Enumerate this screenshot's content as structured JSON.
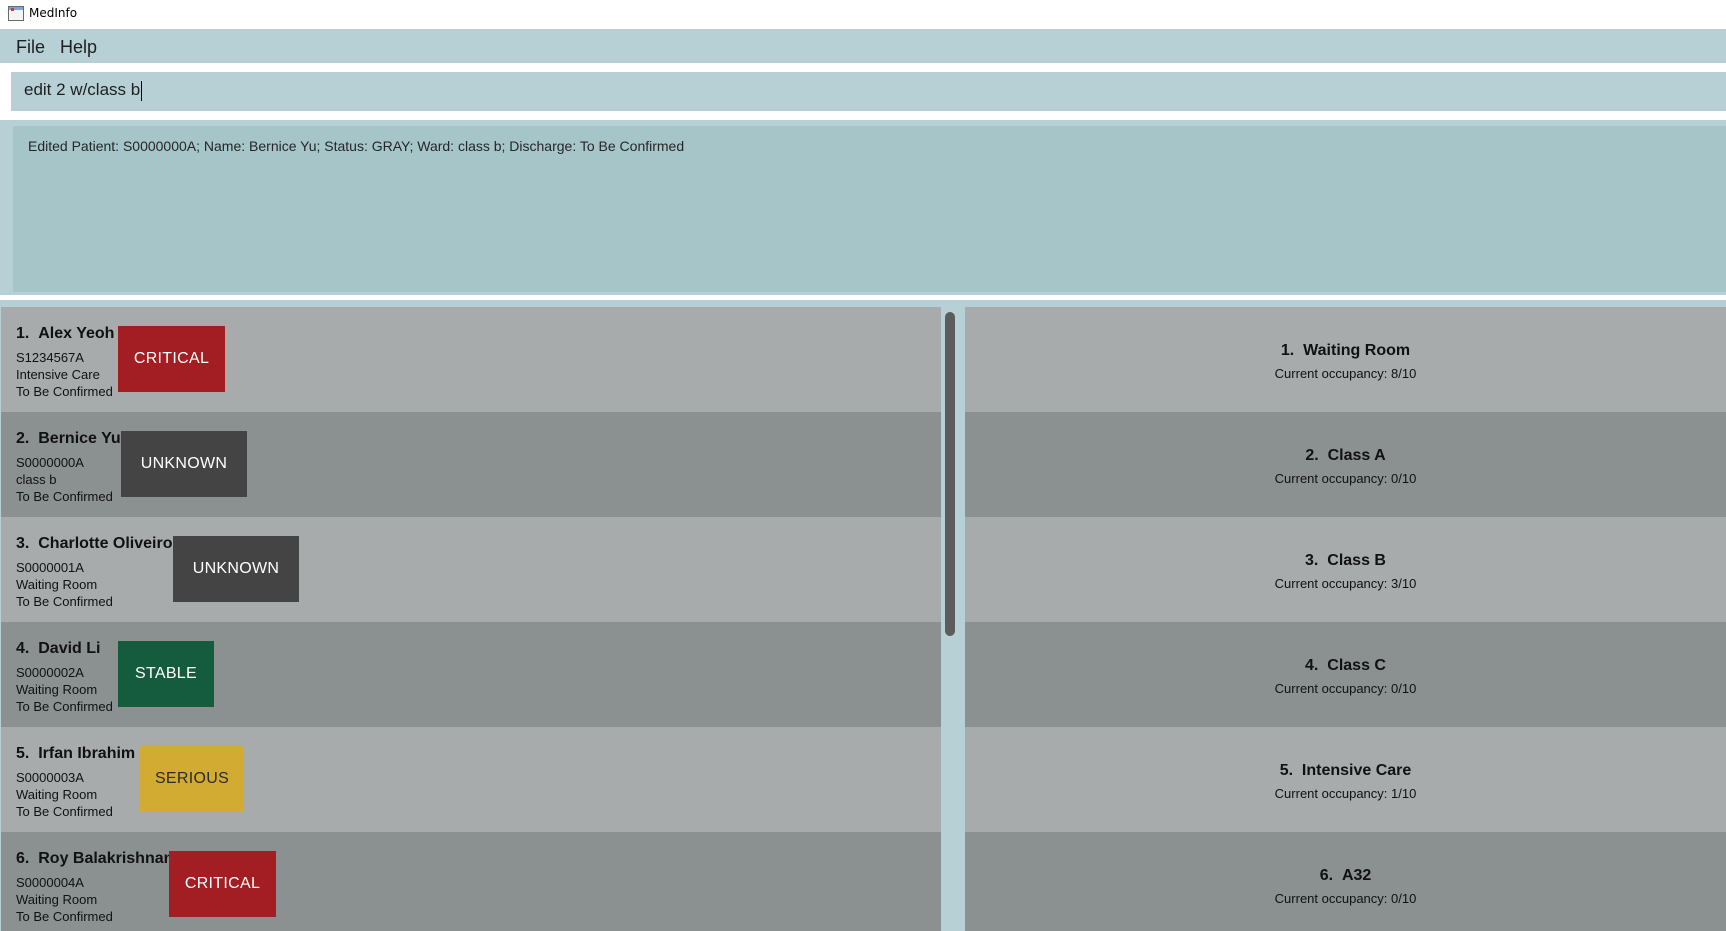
{
  "window": {
    "title": "MedInfo",
    "icon": "app-window-icon"
  },
  "menu": {
    "items": [
      {
        "label": "File"
      },
      {
        "label": "Help"
      }
    ]
  },
  "command": {
    "value": "edit 2 w/class b"
  },
  "result": {
    "message": "Edited Patient: S0000000A; Name: Bernice Yu; Status: GRAY; Ward: class b; Discharge: To Be Confirmed"
  },
  "colors": {
    "critical": "#a21e22",
    "unknown": "#444444",
    "stable": "#155c3e",
    "serious": "#d2ac32",
    "serious_text": "#2b2b2b",
    "panel": "#b6d0d6",
    "row_light": "#a8abac",
    "row_dark": "#8b9091"
  },
  "patients": [
    {
      "index": "1.",
      "name": "Alex Yeoh",
      "nric": "S1234567A",
      "ward": "Intensive Care",
      "discharge": "To Be Confirmed",
      "status": "CRITICAL"
    },
    {
      "index": "2.",
      "name": "Bernice Yu",
      "nric": "S0000000A",
      "ward": "class b",
      "discharge": "To Be Confirmed",
      "status": "UNKNOWN"
    },
    {
      "index": "3.",
      "name": "Charlotte Oliveiro",
      "nric": "S0000001A",
      "ward": "Waiting Room",
      "discharge": "To Be Confirmed",
      "status": "UNKNOWN"
    },
    {
      "index": "4.",
      "name": "David Li",
      "nric": "S0000002A",
      "ward": "Waiting Room",
      "discharge": "To Be Confirmed",
      "status": "STABLE"
    },
    {
      "index": "5.",
      "name": "Irfan Ibrahim",
      "nric": "S0000003A",
      "ward": "Waiting Room",
      "discharge": "To Be Confirmed",
      "status": "SERIOUS"
    },
    {
      "index": "6.",
      "name": "Roy Balakrishnan",
      "nric": "S0000004A",
      "ward": "Waiting Room",
      "discharge": "To Be Confirmed",
      "status": "CRITICAL"
    }
  ],
  "wards": [
    {
      "index": "1.",
      "name": "Waiting Room",
      "occupancy": "Current occupancy: 8/10"
    },
    {
      "index": "2.",
      "name": "Class A",
      "occupancy": "Current occupancy: 0/10"
    },
    {
      "index": "3.",
      "name": "Class B",
      "occupancy": "Current occupancy: 3/10"
    },
    {
      "index": "4.",
      "name": "Class C",
      "occupancy": "Current occupancy: 0/10"
    },
    {
      "index": "5.",
      "name": "Intensive Care",
      "occupancy": "Current occupancy: 1/10"
    },
    {
      "index": "6.",
      "name": "A32",
      "occupancy": "Current occupancy: 0/10"
    }
  ]
}
